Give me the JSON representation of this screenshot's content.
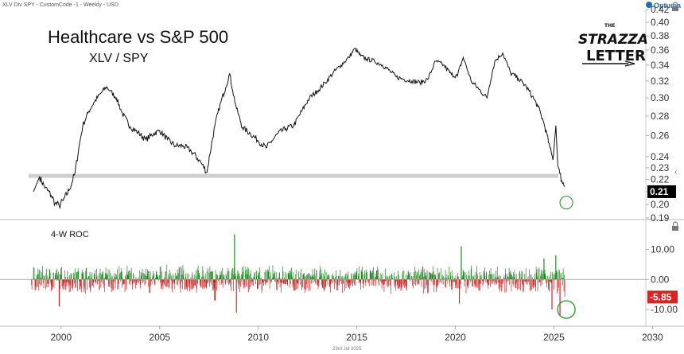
{
  "header": {
    "instrument_label": "XLV Div SPY - CustomCode -1 - Weekly - USD",
    "provider_label": "Optuma",
    "footer_date": "23rd Jul 2025"
  },
  "logo": {
    "line1": "THE",
    "line2": "STRAZZA",
    "line3": "LETTER"
  },
  "colors": {
    "price_line": "#111111",
    "roc_up": "#1a8a1a",
    "roc_down": "#d42020",
    "support_band": "#cfcfcf",
    "marker": "#2ea02e",
    "badge_price": "#000000",
    "badge_roc": "#e01f1f"
  },
  "chart_data": [
    {
      "type": "line",
      "title": "Healthcare vs S&P 500",
      "subtitle": "XLV / SPY",
      "ylim": [
        0.19,
        0.42
      ],
      "yticks": [
        0.19,
        0.2,
        0.21,
        0.22,
        0.23,
        0.24,
        0.26,
        0.28,
        0.3,
        0.32,
        0.34,
        0.36,
        0.38,
        0.4,
        0.42
      ],
      "ytick_labels": [
        "0.19",
        "0.20",
        "0.21",
        "0.22",
        "0.23",
        "0.24",
        "0.26",
        "0.28",
        "0.30",
        "0.32",
        "0.34",
        "0.36",
        "0.38",
        "0.40",
        "0.42"
      ],
      "last_value_label": "0.21",
      "support_level": 0.223,
      "x": [
        1998.6,
        1998.9,
        1999.2,
        1999.5,
        1999.7,
        1999.9,
        2000.1,
        2000.4,
        2000.7,
        2000.9,
        2001.1,
        2001.4,
        2001.7,
        2002.0,
        2002.3,
        2002.5,
        2002.8,
        2003.1,
        2003.5,
        2003.9,
        2004.3,
        2004.7,
        2005.0,
        2005.4,
        2005.8,
        2006.2,
        2006.6,
        2007.0,
        2007.4,
        2007.8,
        2008.1,
        2008.35,
        2008.55,
        2008.7,
        2008.9,
        2009.2,
        2009.6,
        2010.0,
        2010.4,
        2010.7,
        2011.0,
        2011.4,
        2011.8,
        2012.2,
        2012.6,
        2013.0,
        2013.4,
        2013.8,
        2014.2,
        2014.6,
        2014.9,
        2015.2,
        2015.5,
        2015.9,
        2016.3,
        2016.7,
        2017.0,
        2017.4,
        2017.8,
        2018.2,
        2018.6,
        2019.0,
        2019.4,
        2019.8,
        2020.1,
        2020.4,
        2020.8,
        2021.2,
        2021.6,
        2022.0,
        2022.4,
        2022.8,
        2023.2,
        2023.6,
        2023.9,
        2024.2,
        2024.5,
        2024.8,
        2024.95,
        2025.1,
        2025.2,
        2025.3,
        2025.4,
        2025.55
      ],
      "y": [
        0.21,
        0.222,
        0.213,
        0.207,
        0.201,
        0.199,
        0.203,
        0.211,
        0.225,
        0.248,
        0.27,
        0.285,
        0.296,
        0.305,
        0.313,
        0.308,
        0.3,
        0.283,
        0.269,
        0.263,
        0.256,
        0.262,
        0.265,
        0.256,
        0.25,
        0.25,
        0.245,
        0.237,
        0.226,
        0.27,
        0.295,
        0.312,
        0.329,
        0.309,
        0.288,
        0.268,
        0.262,
        0.255,
        0.248,
        0.255,
        0.262,
        0.267,
        0.27,
        0.285,
        0.3,
        0.308,
        0.318,
        0.33,
        0.34,
        0.35,
        0.362,
        0.352,
        0.348,
        0.345,
        0.34,
        0.332,
        0.325,
        0.322,
        0.32,
        0.318,
        0.322,
        0.345,
        0.34,
        0.328,
        0.326,
        0.35,
        0.32,
        0.31,
        0.3,
        0.345,
        0.356,
        0.33,
        0.323,
        0.313,
        0.302,
        0.29,
        0.272,
        0.248,
        0.237,
        0.27,
        0.232,
        0.225,
        0.219,
        0.214
      ]
    },
    {
      "type": "bar",
      "title": "4-W ROC",
      "ylim": [
        -15,
        17
      ],
      "yticks": [
        10,
        0,
        -10
      ],
      "ytick_labels": [
        "10.00",
        "0.00",
        "-10.00"
      ],
      "last_value_label": "-5.85",
      "x_start": 1998.5,
      "x_end": 2025.55,
      "weeks": 1400,
      "spikes": [
        {
          "x": 2008.8,
          "value": 15
        },
        {
          "x": 2008.9,
          "value": -11
        },
        {
          "x": 2007.8,
          "value": -7
        },
        {
          "x": 1999.9,
          "value": -9
        },
        {
          "x": 2020.3,
          "value": 11
        },
        {
          "x": 2020.2,
          "value": -8
        },
        {
          "x": 2024.5,
          "value": 7
        },
        {
          "x": 2024.9,
          "value": -10
        },
        {
          "x": 2025.1,
          "value": 8
        },
        {
          "x": 2025.3,
          "value": -12
        }
      ],
      "series_last": -5.85
    }
  ],
  "xaxis": {
    "xlim": [
      1996.9,
      2031.6
    ],
    "ticks": [
      2000,
      2005,
      2010,
      2015,
      2020,
      2025,
      2030
    ],
    "tick_labels": [
      "2000",
      "2005",
      "2010",
      "2015",
      "2020",
      "2025",
      "2030"
    ]
  }
}
